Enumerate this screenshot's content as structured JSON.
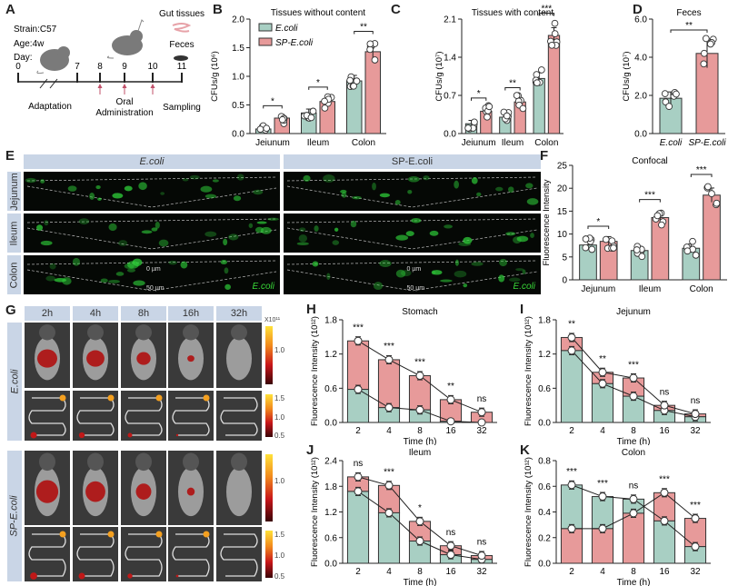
{
  "colors": {
    "ecoli": "#a8cfc3",
    "sp_ecoli": "#e79a9a",
    "header_bg": "#c9d5e6",
    "arrow": "#c0506a"
  },
  "panel_a": {
    "letter": "A",
    "strain": "Strain:C57",
    "age": "Age:4w",
    "day_label": "Day:",
    "days": [
      "0",
      "7",
      "8",
      "9",
      "10",
      "11"
    ],
    "adaptation": "Adaptation",
    "oral_line1": "Oral",
    "oral_line2": "Administration",
    "sampling": "Sampling",
    "gut_tissues": "Gut tissues",
    "feces": "Feces"
  },
  "panel_e": {
    "letter": "E",
    "col_headers": [
      "E.coli",
      "SP-E.coli"
    ],
    "row_headers": [
      "Jejunum",
      "Ileum",
      "Colon"
    ],
    "scale_top": "0 µm",
    "scale_bottom": "50 µm",
    "channel_label": "E.coli"
  },
  "panel_g": {
    "letter": "G",
    "time_headers": [
      "2h",
      "4h",
      "8h",
      "16h",
      "32h"
    ],
    "row_groups": [
      "E.coli",
      "SP-E.coli"
    ],
    "colorbar_exponent": "X10¹¹",
    "colorbar_body_ticks": [
      "1.0"
    ],
    "colorbar_gut_ticks": [
      "1.5",
      "1.0",
      "0.5"
    ]
  },
  "chart_data": [
    {
      "id": "B",
      "type": "bar",
      "title": "Tissues without content",
      "ylabel": "CFUs/g (10⁶)",
      "xlabel": "",
      "categories": [
        "Jejunum",
        "Ileum",
        "Colon"
      ],
      "ylim": [
        0,
        2.0
      ],
      "yticks": [
        "0.0",
        "0.5",
        "1.0",
        "1.5",
        "2.0"
      ],
      "legend": [
        "E.coli",
        "SP-E.coli"
      ],
      "legend_position": "top-left",
      "series": [
        {
          "name": "E.coli",
          "values": [
            0.08,
            0.36,
            0.92
          ]
        },
        {
          "name": "SP-E.coli",
          "values": [
            0.27,
            0.56,
            1.43
          ]
        }
      ],
      "significance": [
        "*",
        "*",
        "**"
      ]
    },
    {
      "id": "C",
      "type": "bar",
      "title": "Tissues with content",
      "ylabel": "CFUs/g (10⁷)",
      "xlabel": "",
      "categories": [
        "Jejunum",
        "Ileum",
        "Colon"
      ],
      "ylim": [
        0,
        2.1
      ],
      "yticks": [
        "0.0",
        "0.7",
        "1.4",
        "2.1"
      ],
      "series": [
        {
          "name": "E.coli",
          "values": [
            0.18,
            0.3,
            1.01
          ]
        },
        {
          "name": "SP-E.coli",
          "values": [
            0.41,
            0.58,
            1.8
          ]
        }
      ],
      "significance": [
        "*",
        "**",
        "***"
      ]
    },
    {
      "id": "D",
      "type": "bar",
      "title": "Feces",
      "ylabel": "CFUs/g (10⁷)",
      "xlabel": "",
      "categories": [
        "E.coli",
        "SP-E.coli"
      ],
      "ylim": [
        0,
        6.0
      ],
      "yticks": [
        "0.0",
        "2.0",
        "4.0",
        "6.0"
      ],
      "values": [
        1.85,
        4.2
      ],
      "significance": [
        "**"
      ]
    },
    {
      "id": "F",
      "type": "bar",
      "title": "Confocal",
      "ylabel": "Fluorescence Intensity",
      "xlabel": "",
      "categories": [
        "Jejunum",
        "Ileum",
        "Colon"
      ],
      "ylim": [
        0,
        25
      ],
      "yticks": [
        "0",
        "5",
        "10",
        "15",
        "20",
        "25"
      ],
      "series": [
        {
          "name": "E.coli",
          "values": [
            7.6,
            6.4,
            6.9
          ]
        },
        {
          "name": "SP-E.coli",
          "values": [
            8.4,
            13.6,
            18.5
          ]
        }
      ],
      "significance": [
        "*",
        "***",
        "***"
      ]
    },
    {
      "id": "H",
      "type": "bar",
      "title": "Stomach",
      "ylabel": "Fluorescence Intensity (10¹²)",
      "xlabel": "Time (h)",
      "categories": [
        "2",
        "4",
        "8",
        "16",
        "32"
      ],
      "ylim": [
        0,
        1.8
      ],
      "yticks": [
        "0.0",
        "0.6",
        "1.2",
        "1.8"
      ],
      "series": [
        {
          "name": "E.coli",
          "values": [
            0.58,
            0.26,
            0.22,
            0.02,
            0.0
          ]
        },
        {
          "name": "SP-E.coli",
          "values": [
            1.43,
            1.1,
            0.82,
            0.4,
            0.18
          ]
        }
      ],
      "significance": [
        "***",
        "***",
        "***",
        "**",
        "ns"
      ]
    },
    {
      "id": "I",
      "type": "bar",
      "title": "Jejunum",
      "ylabel": "Fluorescence Intensity (10¹²)",
      "xlabel": "Time (h)",
      "categories": [
        "2",
        "4",
        "8",
        "16",
        "32"
      ],
      "ylim": [
        0,
        1.8
      ],
      "yticks": [
        "0.0",
        "0.6",
        "1.2",
        "1.8"
      ],
      "series": [
        {
          "name": "E.coli",
          "values": [
            1.26,
            0.68,
            0.46,
            0.21,
            0.1
          ]
        },
        {
          "name": "SP-E.coli",
          "values": [
            1.49,
            0.88,
            0.78,
            0.3,
            0.15
          ]
        }
      ],
      "significance": [
        "**",
        "**",
        "***",
        "ns",
        "ns"
      ]
    },
    {
      "id": "J",
      "type": "bar",
      "title": "Ileum",
      "ylabel": "Fluorescence Intensity (10¹²)",
      "xlabel": "Time (h)",
      "categories": [
        "2",
        "4",
        "8",
        "16",
        "32"
      ],
      "ylim": [
        0,
        2.4
      ],
      "yticks": [
        "0.0",
        "0.6",
        "1.2",
        "1.8",
        "2.4"
      ],
      "series": [
        {
          "name": "E.coli",
          "values": [
            1.68,
            1.18,
            0.52,
            0.2,
            0.09
          ]
        },
        {
          "name": "SP-E.coli",
          "values": [
            2.02,
            1.82,
            0.98,
            0.41,
            0.18
          ]
        }
      ],
      "significance": [
        "ns",
        "***",
        "*",
        "ns",
        "ns"
      ]
    },
    {
      "id": "K",
      "type": "bar",
      "title": "Colon",
      "ylabel": "Fluorescence Intensity (10¹²)",
      "xlabel": "Time (h)",
      "categories": [
        "2",
        "4",
        "8",
        "16",
        "32"
      ],
      "ylim": [
        0,
        0.8
      ],
      "yticks": [
        "0.0",
        "0.2",
        "0.4",
        "0.6",
        "0.8"
      ],
      "series": [
        {
          "name": "E.coli",
          "values": [
            0.61,
            0.52,
            0.5,
            0.33,
            0.13
          ]
        },
        {
          "name": "SP-E.coli",
          "values": [
            0.27,
            0.27,
            0.39,
            0.55,
            0.35
          ]
        }
      ],
      "significance": [
        "***",
        "***",
        "ns",
        "***",
        "***"
      ]
    }
  ]
}
